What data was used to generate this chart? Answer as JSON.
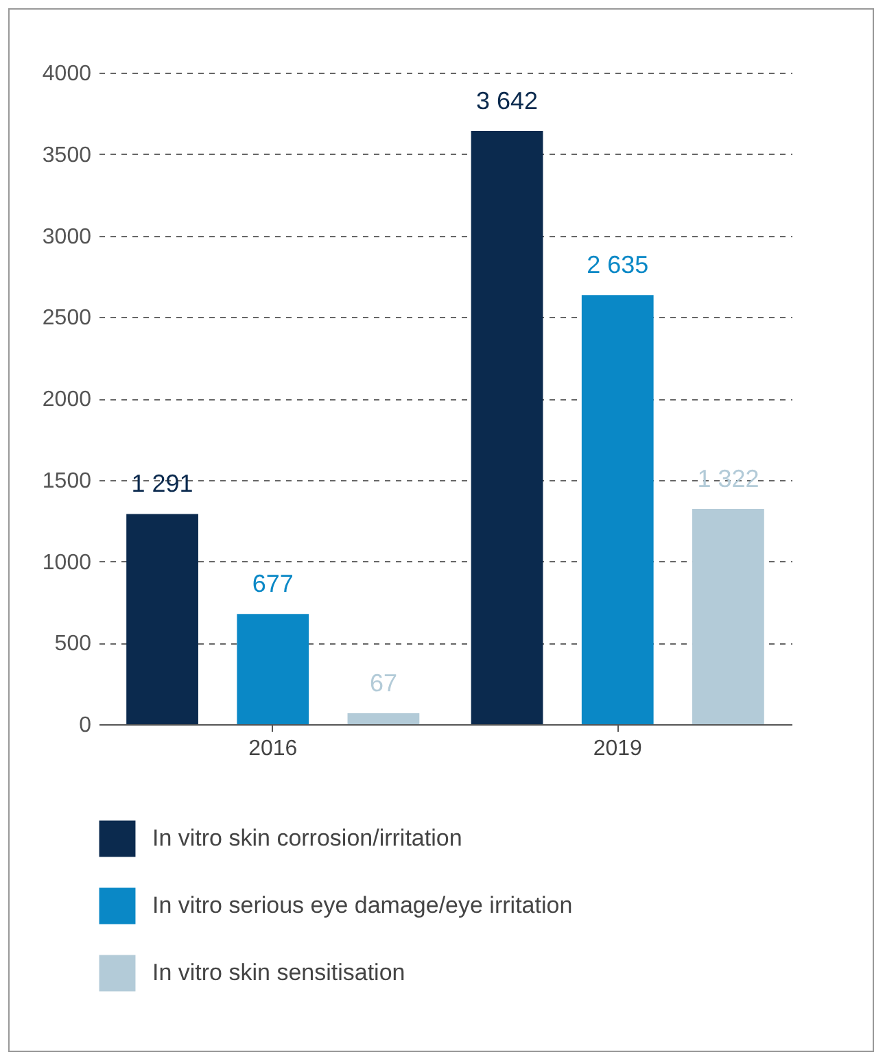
{
  "chart_data": {
    "type": "bar",
    "categories": [
      "2016",
      "2019"
    ],
    "series": [
      {
        "name": "In vitro skin corrosion/irritation",
        "color": "#0b2a4e",
        "values": [
          1291,
          3642
        ],
        "value_labels": [
          "1 291",
          "3 642"
        ]
      },
      {
        "name": "In vitro serious eye damage/eye irritation",
        "color": "#0a88c6",
        "values": [
          677,
          2635
        ],
        "value_labels": [
          "677",
          "2 635"
        ]
      },
      {
        "name": "In vitro skin sensitisation",
        "color": "#b3cbd8",
        "values": [
          67,
          1322
        ],
        "value_labels": [
          "67",
          "1 322"
        ]
      }
    ],
    "ylim": [
      0,
      4000
    ],
    "yticks": [
      0,
      500,
      1000,
      1500,
      2000,
      2500,
      3000,
      3500,
      4000
    ],
    "grid": "y",
    "legend": "bottom"
  }
}
